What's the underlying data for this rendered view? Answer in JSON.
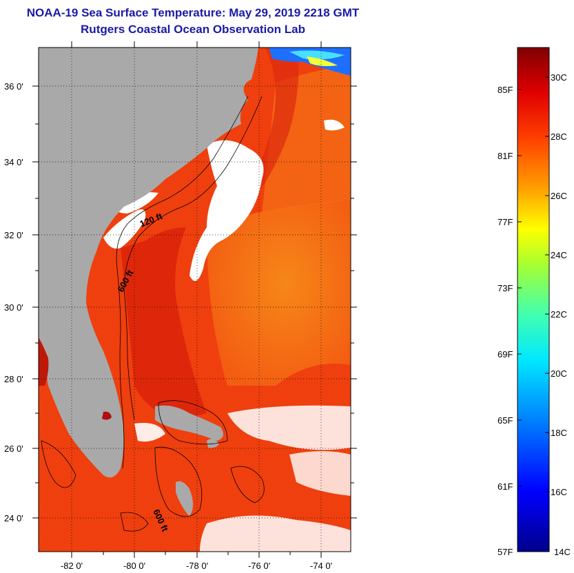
{
  "header": {
    "title": "NOAA-19 Sea Surface Temperature:  May 29, 2019 2218 GMT",
    "subtitle": "Rutgers Coastal Ocean Observation Lab"
  },
  "map": {
    "lat_labels": [
      "36 0'",
      "34 0'",
      "32 0'",
      "30 0'",
      "28 0'",
      "26 0'",
      "24 0'"
    ],
    "lon_labels": [
      "-82 0'",
      "-80 0'",
      "-78 0'",
      "-76 0'",
      "-74 0'"
    ],
    "contour_labels": [
      "120 ft",
      "600 ft",
      "600 ft"
    ],
    "colors": {
      "land": "#a9a9a9",
      "cloud": "#ffffff",
      "warm_sea": "#ee2a0e",
      "gulfstream": "#d91a0a",
      "offshore": "#f36a14"
    }
  },
  "colorbar": {
    "fahrenheit_labels": [
      "85F",
      "81F",
      "77F",
      "73F",
      "69F",
      "65F",
      "61F",
      "57F"
    ],
    "celsius_labels": [
      "30C",
      "28C",
      "26C",
      "24C",
      "22C",
      "20C",
      "18C",
      "16C",
      "14C"
    ],
    "range_c": [
      14,
      31
    ]
  }
}
